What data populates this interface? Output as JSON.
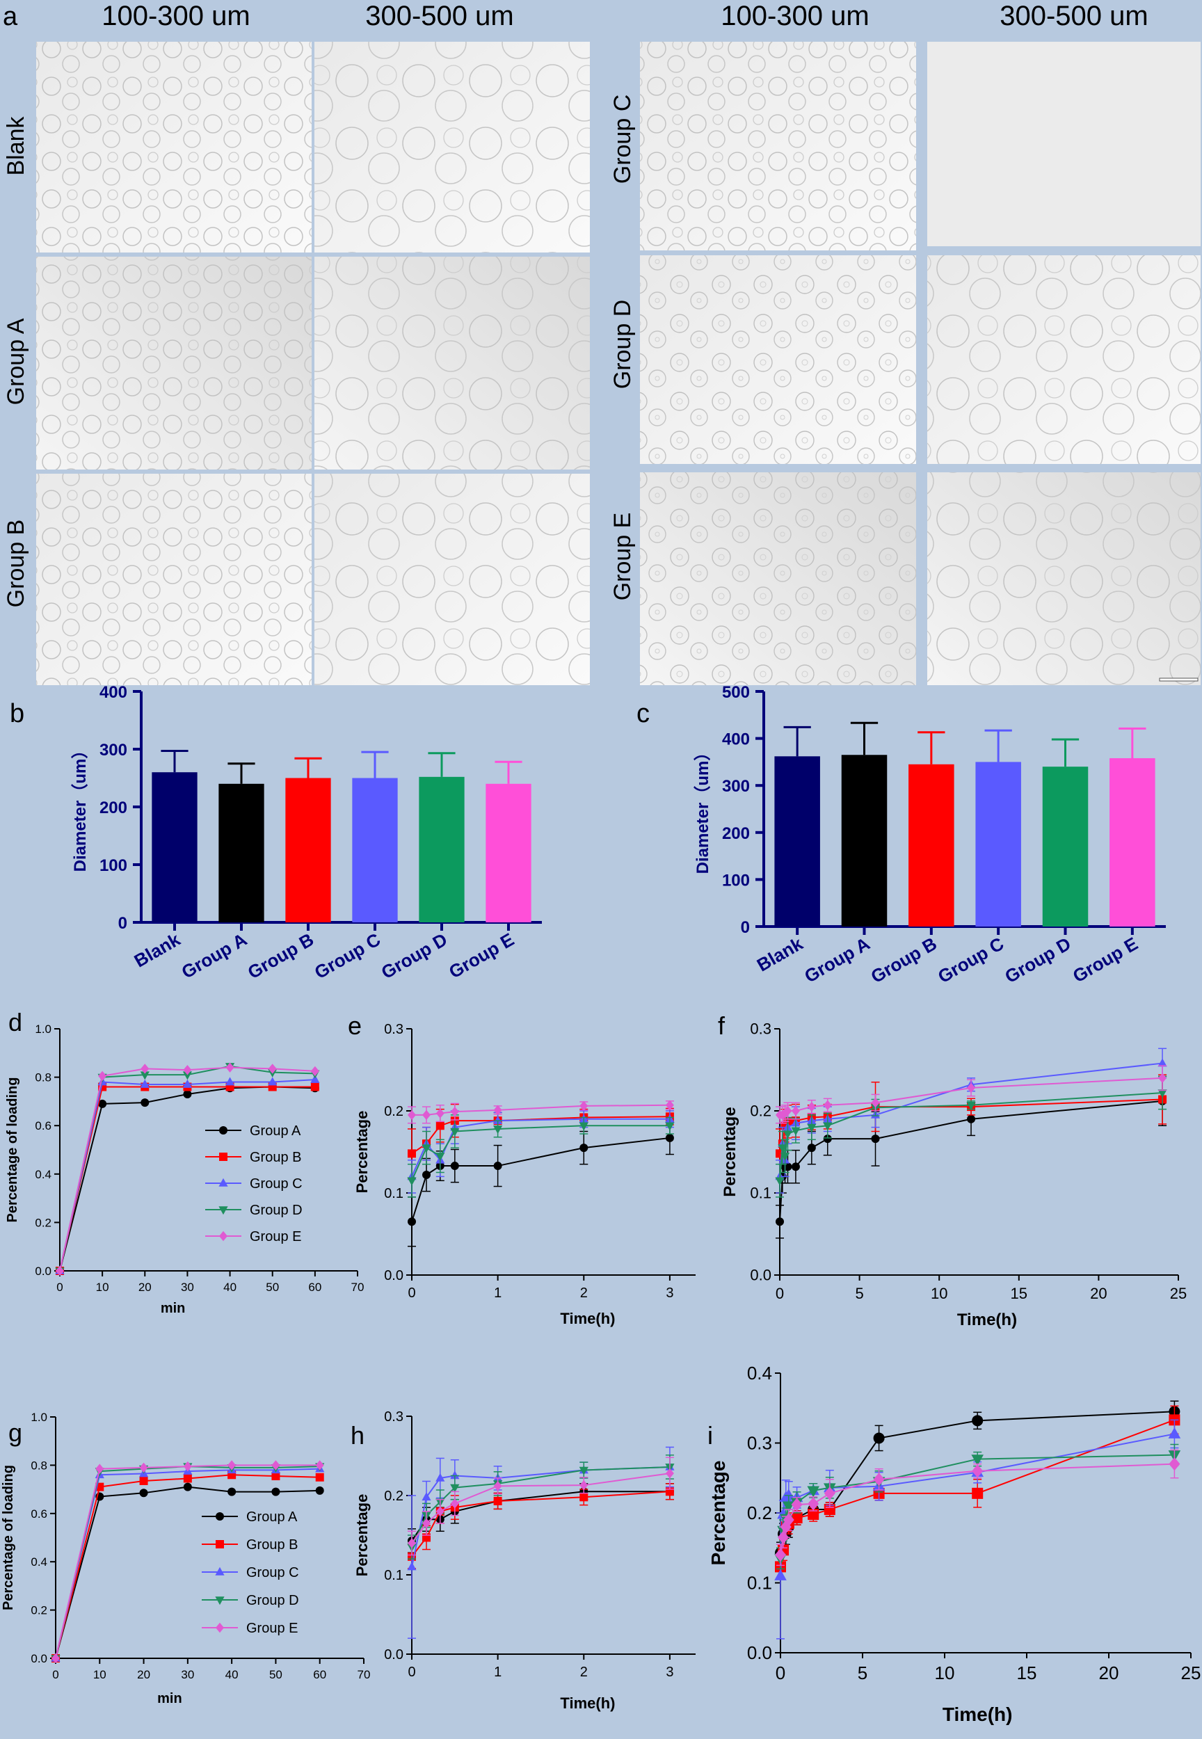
{
  "colors": {
    "background": "#b7c9df",
    "navy": "#00007a",
    "blank": "#00006a",
    "groupA": "#000000",
    "groupB": "#ff0000",
    "groupC": "#5a5aff",
    "groupD": "#0c9a5e",
    "groupE": "#ff4fd8",
    "lineE": "#e05ad2",
    "lineD": "#1f8f5f"
  },
  "panel_a": {
    "letter": "a",
    "col_left_1": "100-300 um",
    "col_left_2": "300-500 um",
    "col_right_1": "100-300 um",
    "col_right_2": "300-500 um",
    "rows_left": [
      "Blank",
      "Group A",
      "Group B"
    ],
    "rows_right": [
      "Group C",
      "Group D",
      "Group E"
    ]
  },
  "chart_data": [
    {
      "panel": "b",
      "type": "bar",
      "ylabel": "Diameter（um）",
      "ylim": [
        0,
        400
      ],
      "yticks": [
        0,
        100,
        200,
        300,
        400
      ],
      "categories": [
        "Blank",
        "Group A",
        "Group B",
        "Group C",
        "Group D",
        "Group E"
      ],
      "values": [
        260,
        240,
        250,
        250,
        252,
        240
      ],
      "errors": [
        37,
        35,
        34,
        45,
        41,
        38
      ]
    },
    {
      "panel": "c",
      "type": "bar",
      "ylabel": "Diameter（um）",
      "ylim": [
        0,
        500
      ],
      "yticks": [
        0,
        100,
        200,
        300,
        400,
        500
      ],
      "categories": [
        "Blank",
        "Group A",
        "Group B",
        "Group C",
        "Group D",
        "Group E"
      ],
      "values": [
        362,
        365,
        345,
        350,
        340,
        358
      ],
      "errors": [
        62,
        68,
        68,
        67,
        58,
        63
      ]
    },
    {
      "panel": "d",
      "type": "line",
      "xlabel": "min",
      "ylabel": "Percentage of loading",
      "xlim": [
        0,
        70
      ],
      "ylim": [
        0,
        1.0
      ],
      "xticks": [
        0,
        10,
        20,
        30,
        40,
        50,
        60,
        70
      ],
      "yticks": [
        "0.0",
        "0.2",
        "0.4",
        "0.6",
        "0.8",
        "1.0"
      ],
      "x": [
        0,
        10,
        20,
        30,
        40,
        50,
        60
      ],
      "legend": true,
      "series": [
        {
          "name": "Group A",
          "values": [
            0,
            0.69,
            0.695,
            0.73,
            0.755,
            0.76,
            0.755
          ]
        },
        {
          "name": "Group B",
          "values": [
            0,
            0.76,
            0.76,
            0.76,
            0.76,
            0.76,
            0.76
          ]
        },
        {
          "name": "Group C",
          "values": [
            0,
            0.78,
            0.77,
            0.77,
            0.78,
            0.78,
            0.79
          ]
        },
        {
          "name": "Group D",
          "values": [
            0,
            0.8,
            0.81,
            0.81,
            0.845,
            0.82,
            0.815
          ]
        },
        {
          "name": "Group E",
          "values": [
            0,
            0.805,
            0.835,
            0.83,
            0.84,
            0.835,
            0.825
          ]
        }
      ]
    },
    {
      "panel": "e",
      "type": "line",
      "xlabel": "Time(h)",
      "ylabel": "Percentage",
      "xlim": [
        0,
        3.3
      ],
      "ylim": [
        0,
        0.3
      ],
      "xticks": [
        0,
        1,
        2,
        3
      ],
      "yticks": [
        "0.0",
        "0.1",
        "0.2",
        "0.3"
      ],
      "x": [
        0,
        0.17,
        0.33,
        0.5,
        1,
        2,
        3
      ],
      "series": [
        {
          "name": "Group A",
          "values": [
            0.065,
            0.122,
            0.133,
            0.133,
            0.133,
            0.155,
            0.167
          ],
          "errors": [
            0.03,
            0.02,
            0.018,
            0.02,
            0.025,
            0.02,
            0.02
          ]
        },
        {
          "name": "Group B",
          "values": [
            0.148,
            0.16,
            0.182,
            0.188,
            0.188,
            0.192,
            0.193
          ],
          "errors": [
            0.03,
            0.02,
            0.02,
            0.02,
            0.01,
            0.01,
            0.01
          ]
        },
        {
          "name": "Group C",
          "values": [
            0.12,
            0.16,
            0.14,
            0.18,
            0.188,
            0.19,
            0.19
          ],
          "errors": [
            0.02,
            0.02,
            0.02,
            0.02,
            0.01,
            0.01,
            0.01
          ]
        },
        {
          "name": "Group D",
          "values": [
            0.115,
            0.155,
            0.145,
            0.175,
            0.178,
            0.182,
            0.182
          ],
          "errors": [
            0.02,
            0.02,
            0.02,
            0.02,
            0.01,
            0.01,
            0.01
          ]
        },
        {
          "name": "Group E",
          "values": [
            0.195,
            0.195,
            0.197,
            0.199,
            0.201,
            0.206,
            0.207
          ],
          "errors": [
            0.01,
            0.01,
            0.01,
            0.01,
            0.005,
            0.005,
            0.005
          ]
        }
      ]
    },
    {
      "panel": "f",
      "type": "line",
      "xlabel": "Time(h)",
      "ylabel": "Percentage",
      "xlim": [
        0,
        25
      ],
      "ylim": [
        0,
        0.3
      ],
      "xticks": [
        0,
        5,
        10,
        15,
        20,
        25
      ],
      "yticks": [
        "0.0",
        "0.1",
        "0.2",
        "0.3"
      ],
      "x": [
        0,
        0.17,
        0.33,
        0.5,
        1,
        2,
        3,
        6,
        12,
        24
      ],
      "series": [
        {
          "name": "Group A",
          "values": [
            0.065,
            0.12,
            0.132,
            0.132,
            0.132,
            0.155,
            0.166,
            0.166,
            0.19,
            0.212
          ],
          "errors": [
            0.02,
            0.02,
            0.02,
            0.02,
            0.02,
            0.02,
            0.02,
            0.033,
            0.02,
            0.03
          ]
        },
        {
          "name": "Group B",
          "values": [
            0.148,
            0.16,
            0.182,
            0.187,
            0.188,
            0.192,
            0.193,
            0.205,
            0.205,
            0.214
          ],
          "errors": [
            0.03,
            0.02,
            0.02,
            0.02,
            0.02,
            0.015,
            0.015,
            0.03,
            0.01,
            0.03
          ]
        },
        {
          "name": "Group C",
          "values": [
            0.12,
            0.16,
            0.14,
            0.18,
            0.185,
            0.188,
            0.19,
            0.195,
            0.232,
            0.258
          ],
          "errors": [
            0.02,
            0.02,
            0.02,
            0.02,
            0.02,
            0.015,
            0.015,
            0.015,
            0.008,
            0.018
          ]
        },
        {
          "name": "Group D",
          "values": [
            0.115,
            0.155,
            0.145,
            0.172,
            0.176,
            0.18,
            0.182,
            0.204,
            0.207,
            0.222
          ],
          "errors": [
            0.02,
            0.02,
            0.02,
            0.02,
            0.015,
            0.015,
            0.015,
            0.01,
            0.005,
            0.02
          ]
        },
        {
          "name": "Group E",
          "values": [
            0.195,
            0.195,
            0.197,
            0.2,
            0.2,
            0.205,
            0.207,
            0.21,
            0.228,
            0.24
          ],
          "errors": [
            0.01,
            0.01,
            0.01,
            0.01,
            0.01,
            0.008,
            0.008,
            0.01,
            0.01,
            0.015
          ]
        }
      ]
    },
    {
      "panel": "g",
      "type": "line",
      "xlabel": "min",
      "ylabel": "Percentage of loading",
      "xlim": [
        0,
        70
      ],
      "ylim": [
        0,
        1.0
      ],
      "xticks": [
        0,
        10,
        20,
        30,
        40,
        50,
        60,
        70
      ],
      "yticks": [
        "0.0",
        "0.2",
        "0.4",
        "0.6",
        "0.8",
        "1.0"
      ],
      "x": [
        0,
        10,
        20,
        30,
        40,
        50,
        60
      ],
      "legend": true,
      "series": [
        {
          "name": "Group A",
          "values": [
            0,
            0.67,
            0.685,
            0.71,
            0.69,
            0.69,
            0.695
          ]
        },
        {
          "name": "Group B",
          "values": [
            0,
            0.71,
            0.735,
            0.745,
            0.76,
            0.755,
            0.75
          ]
        },
        {
          "name": "Group C",
          "values": [
            0,
            0.76,
            0.765,
            0.775,
            0.78,
            0.78,
            0.785
          ]
        },
        {
          "name": "Group D",
          "values": [
            0,
            0.775,
            0.785,
            0.795,
            0.79,
            0.79,
            0.795
          ]
        },
        {
          "name": "Group E",
          "values": [
            0,
            0.785,
            0.79,
            0.795,
            0.8,
            0.8,
            0.8
          ]
        }
      ]
    },
    {
      "panel": "h",
      "type": "line",
      "xlabel": "Time(h)",
      "ylabel": "Percentage",
      "xlim": [
        0,
        3.3
      ],
      "ylim": [
        0,
        0.3
      ],
      "xticks": [
        0,
        1,
        2,
        3
      ],
      "yticks": [
        "0.0",
        "0.1",
        "0.2",
        "0.3"
      ],
      "x": [
        0,
        0.17,
        0.33,
        0.5,
        1,
        2,
        3
      ],
      "series": [
        {
          "name": "Group A",
          "values": [
            0.143,
            0.17,
            0.17,
            0.18,
            0.193,
            0.205,
            0.205
          ],
          "errors": [
            0.015,
            0.015,
            0.015,
            0.015,
            0.01,
            0.01,
            0.01
          ]
        },
        {
          "name": "Group B",
          "values": [
            0.123,
            0.147,
            0.18,
            0.185,
            0.193,
            0.198,
            0.205
          ],
          "errors": [
            0.015,
            0.015,
            0.015,
            0.015,
            0.01,
            0.01,
            0.01
          ]
        },
        {
          "name": "Group C",
          "values": [
            0.11,
            0.198,
            0.222,
            0.225,
            0.222,
            0.232,
            0.236
          ],
          "errors": [
            0.09,
            0.02,
            0.025,
            0.02,
            0.015,
            0.01,
            0.025
          ]
        },
        {
          "name": "Group D",
          "values": [
            0.135,
            0.175,
            0.192,
            0.21,
            0.215,
            0.232,
            0.236
          ],
          "errors": [
            0.015,
            0.015,
            0.015,
            0.015,
            0.015,
            0.01,
            0.015
          ]
        },
        {
          "name": "Group E",
          "values": [
            0.14,
            0.165,
            0.18,
            0.19,
            0.212,
            0.213,
            0.228
          ],
          "errors": [
            0.015,
            0.015,
            0.015,
            0.015,
            0.01,
            0.01,
            0.02
          ]
        }
      ]
    },
    {
      "panel": "i",
      "type": "line",
      "xlabel": "Time(h)",
      "ylabel": "Percentage",
      "xlim": [
        0,
        25
      ],
      "ylim": [
        0,
        0.4
      ],
      "xticks": [
        0,
        5,
        10,
        15,
        20,
        25
      ],
      "yticks": [
        "0.0",
        "0.1",
        "0.2",
        "0.3",
        "0.4"
      ],
      "x": [
        0,
        0.17,
        0.33,
        0.5,
        1,
        2,
        3,
        6,
        12,
        24
      ],
      "series": [
        {
          "name": "Group A",
          "values": [
            0.143,
            0.17,
            0.17,
            0.18,
            0.193,
            0.205,
            0.205,
            0.307,
            0.332,
            0.345
          ],
          "errors": [
            0.015,
            0.015,
            0.015,
            0.015,
            0.01,
            0.01,
            0.01,
            0.018,
            0.012,
            0.015
          ]
        },
        {
          "name": "Group B",
          "values": [
            0.123,
            0.147,
            0.18,
            0.185,
            0.193,
            0.198,
            0.205,
            0.228,
            0.228,
            0.333
          ],
          "errors": [
            0.015,
            0.015,
            0.015,
            0.015,
            0.01,
            0.01,
            0.01,
            0.01,
            0.02,
            0.02
          ]
        },
        {
          "name": "Group C",
          "values": [
            0.11,
            0.198,
            0.222,
            0.225,
            0.222,
            0.232,
            0.236,
            0.238,
            0.258,
            0.313
          ],
          "errors": [
            0.09,
            0.02,
            0.025,
            0.02,
            0.015,
            0.01,
            0.025,
            0.02,
            0.015,
            0.02
          ]
        },
        {
          "name": "Group D",
          "values": [
            0.135,
            0.175,
            0.192,
            0.21,
            0.215,
            0.232,
            0.236,
            0.245,
            0.277,
            0.283
          ],
          "errors": [
            0.015,
            0.015,
            0.015,
            0.015,
            0.015,
            0.01,
            0.015,
            0.015,
            0.01,
            0.015
          ]
        },
        {
          "name": "Group E",
          "values": [
            0.14,
            0.165,
            0.18,
            0.19,
            0.212,
            0.213,
            0.228,
            0.248,
            0.26,
            0.27
          ],
          "errors": [
            0.015,
            0.015,
            0.015,
            0.015,
            0.01,
            0.01,
            0.02,
            0.015,
            0.01,
            0.02
          ]
        }
      ]
    }
  ]
}
